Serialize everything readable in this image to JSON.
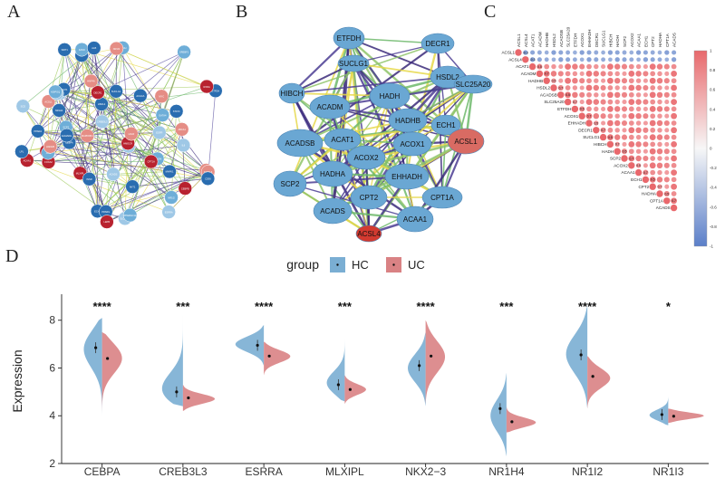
{
  "panels": {
    "a": "A",
    "b": "B",
    "c": "C",
    "d": "D"
  },
  "colors": {
    "hc": "#7aaed3",
    "uc": "#d98284",
    "node_blue_dark": "#2a6db0",
    "node_blue_light": "#6eaed8",
    "node_red_dark": "#b8222f",
    "node_red_light": "#e58d85",
    "edge_purple": "#3b2a7a",
    "edge_green": "#6db86b",
    "edge_yellow": "#e6d84a"
  },
  "network_a": {
    "labels": [
      "PPARA",
      "ACADM",
      "HADHA",
      "CPT2",
      "ACOX1",
      "ECH1",
      "HSDL2",
      "SCP2",
      "DECR1",
      "ACSL1",
      "ACSL4",
      "ETFDH",
      "MAPK1",
      "GATA4",
      "FOXA2",
      "HNF4A",
      "ESRRA",
      "CEBPA",
      "NR1H4",
      "NR1I2",
      "MLXIPL",
      "NKX2-3",
      "SLC27A2",
      "EHHADH",
      "ACAT1",
      "HIBCH",
      "CPT1A",
      "MAPK8IP2",
      "IL6",
      "TNF",
      "STAT3",
      "JUN",
      "ACAA1",
      "HADHB",
      "ACADS",
      "SUCLG1",
      "PPARG",
      "SREBF1",
      "RXRA",
      "NR1I3",
      "CREB3L3",
      "INSR",
      "AKT1",
      "FASN",
      "LEPR",
      "ABCA1",
      "APOA1",
      "CD36",
      "LPL",
      "ADIPOQ",
      "CEBPB",
      "MYC",
      "EGFR",
      "ALB",
      "SIRT1",
      "PPARGC1A",
      "HMGCR",
      "LDLR",
      "SCD",
      "ACACA"
    ]
  },
  "network_b": {
    "nodes": [
      {
        "label": "ETFDH",
        "kind": "blue"
      },
      {
        "label": "DECR1",
        "kind": "blue"
      },
      {
        "label": "SUCLG1",
        "kind": "blue"
      },
      {
        "label": "HIBCH",
        "kind": "blue"
      },
      {
        "label": "HADH",
        "kind": "blue"
      },
      {
        "label": "HSDL2",
        "kind": "blue"
      },
      {
        "label": "ACADM",
        "kind": "blue"
      },
      {
        "label": "SLC25A20",
        "kind": "blue"
      },
      {
        "label": "HADHB",
        "kind": "blue"
      },
      {
        "label": "ACADSB",
        "kind": "blue"
      },
      {
        "label": "ACAT1",
        "kind": "blue"
      },
      {
        "label": "ACOX1",
        "kind": "blue"
      },
      {
        "label": "ECH1",
        "kind": "blue"
      },
      {
        "label": "ACOX2",
        "kind": "blue"
      },
      {
        "label": "ACSL1",
        "kind": "red"
      },
      {
        "label": "HADHA",
        "kind": "blue"
      },
      {
        "label": "EHHADH",
        "kind": "blue"
      },
      {
        "label": "SCP2",
        "kind": "blue"
      },
      {
        "label": "CPT2",
        "kind": "blue"
      },
      {
        "label": "CPT1A",
        "kind": "blue"
      },
      {
        "label": "ACADS",
        "kind": "blue"
      },
      {
        "label": "ACAA1",
        "kind": "blue"
      },
      {
        "label": "ACSL4",
        "kind": "red"
      }
    ]
  },
  "corr_c": {
    "genes": [
      "ACSL1",
      "ACSL4",
      "ACAT1",
      "ACADM",
      "HADHB",
      "HSDL2",
      "ACADSB",
      "SLC25A20",
      "ETFDH",
      "ACOX1",
      "EHHADH",
      "DECR1",
      "SUCLG1",
      "HIBCH",
      "HADH",
      "SCP2",
      "ACOX2",
      "ACAA1",
      "ECH1",
      "CPT2",
      "HADHA",
      "CPT1A",
      "ACADS"
    ],
    "legend_ticks": [
      "1",
      "0.8",
      "0.6",
      "0.4",
      "0.2",
      "0",
      "-0.2",
      "-0.4",
      "-0.6",
      "-0.8",
      "-1"
    ],
    "low_row_value": "-0.3",
    "high_value": "0.7",
    "mid_value": "0.5"
  },
  "chart_data": {
    "type": "split-violin",
    "legend_title": "group",
    "series": [
      {
        "name": "HC"
      },
      {
        "name": "UC"
      }
    ],
    "ylabel": "Expression",
    "ylim": [
      2,
      8.9
    ],
    "yticks": [
      "2",
      "4",
      "6",
      "8"
    ],
    "categories": [
      "CEBPA",
      "CREB3L3",
      "ESRRA",
      "MLXIPL",
      "NKX2−3",
      "NR1H4",
      "NR1I2",
      "NR1I3"
    ],
    "significance": [
      "****",
      "***",
      "****",
      "***",
      "****",
      "***",
      "****",
      "*"
    ],
    "groups": [
      {
        "hc": {
          "mean": 6.85,
          "min": 4.0,
          "max": 8.1,
          "mode": 6.9,
          "w": 0.55
        },
        "uc": {
          "mean": 6.4,
          "min": 4.1,
          "max": 7.5,
          "mode": 6.5,
          "w": 0.6
        }
      },
      {
        "hc": {
          "mean": 5.0,
          "min": 4.4,
          "max": 8.2,
          "mode": 4.9,
          "w": 0.75
        },
        "uc": {
          "mean": 4.75,
          "min": 4.2,
          "max": 5.3,
          "mode": 4.7,
          "w": 0.9
        }
      },
      {
        "hc": {
          "mean": 6.95,
          "min": 6.1,
          "max": 7.8,
          "mode": 7.0,
          "w": 0.8
        },
        "uc": {
          "mean": 6.5,
          "min": 5.7,
          "max": 7.1,
          "mode": 6.5,
          "w": 0.75
        }
      },
      {
        "hc": {
          "mean": 5.3,
          "min": 4.6,
          "max": 7.2,
          "mode": 5.3,
          "w": 0.55
        },
        "uc": {
          "mean": 5.1,
          "min": 4.5,
          "max": 5.7,
          "mode": 5.1,
          "w": 0.6
        }
      },
      {
        "hc": {
          "mean": 6.1,
          "min": 4.4,
          "max": 7.5,
          "mode": 6.0,
          "w": 0.5
        },
        "uc": {
          "mean": 6.5,
          "min": 4.5,
          "max": 8.0,
          "mode": 6.5,
          "w": 0.55
        }
      },
      {
        "hc": {
          "mean": 4.3,
          "min": 2.3,
          "max": 5.8,
          "mode": 4.0,
          "w": 0.45
        },
        "uc": {
          "mean": 3.75,
          "min": 3.3,
          "max": 4.4,
          "mode": 3.7,
          "w": 0.85
        }
      },
      {
        "hc": {
          "mean": 6.55,
          "min": 4.3,
          "max": 8.6,
          "mode": 6.6,
          "w": 0.6
        },
        "uc": {
          "mean": 5.65,
          "min": 4.3,
          "max": 6.5,
          "mode": 5.6,
          "w": 0.65
        }
      },
      {
        "hc": {
          "mean": 4.05,
          "min": 3.6,
          "max": 4.8,
          "mode": 4.0,
          "w": 0.55
        },
        "uc": {
          "mean": 3.98,
          "min": 3.7,
          "max": 4.3,
          "mode": 4.0,
          "w": 1.0
        }
      }
    ]
  }
}
